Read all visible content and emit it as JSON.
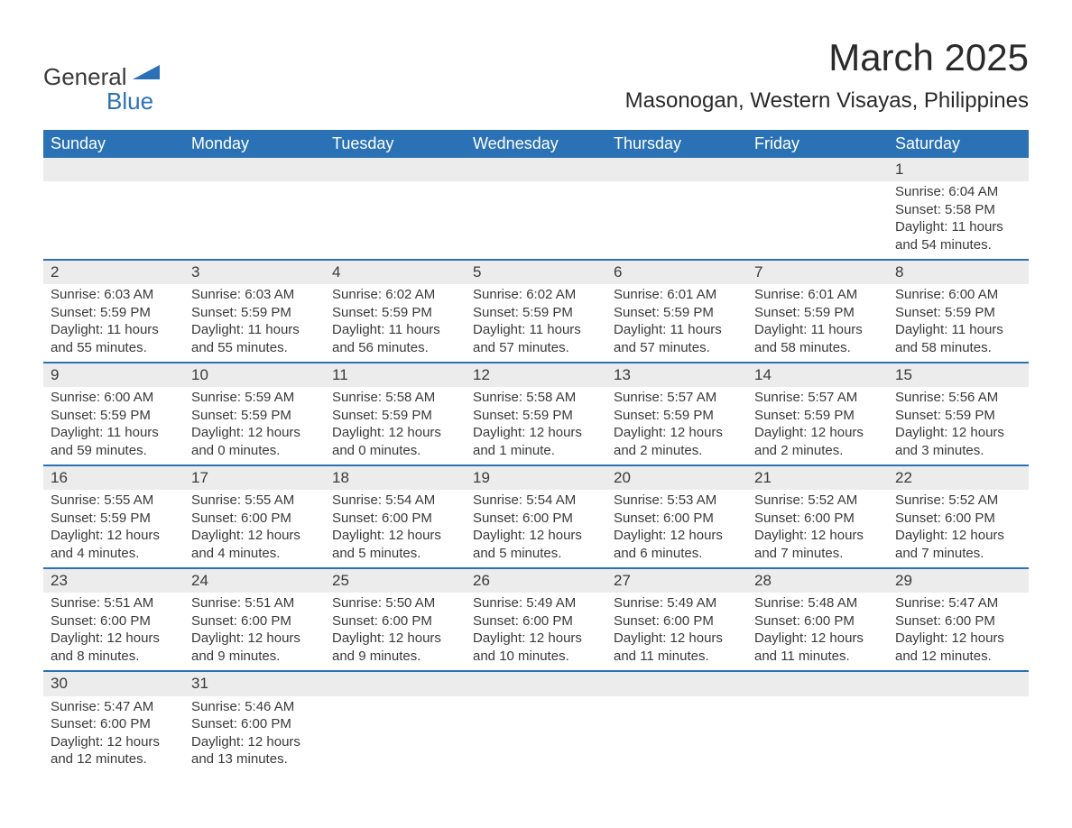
{
  "logo": {
    "general": "General",
    "blue": "Blue",
    "shape_color": "#2a72b5"
  },
  "title": "March 2025",
  "location": "Masonogan, Western Visayas, Philippines",
  "header_bg": "#2a72b5",
  "header_fg": "#ffffff",
  "daynum_bg": "#ececec",
  "row_border": "#2a72b5",
  "text_color": "#3a3a3a",
  "weekdays": [
    "Sunday",
    "Monday",
    "Tuesday",
    "Wednesday",
    "Thursday",
    "Friday",
    "Saturday"
  ],
  "weeks": [
    [
      null,
      null,
      null,
      null,
      null,
      null,
      {
        "n": "1",
        "sr": "6:04 AM",
        "ss": "5:58 PM",
        "dl": "11 hours and 54 minutes."
      }
    ],
    [
      {
        "n": "2",
        "sr": "6:03 AM",
        "ss": "5:59 PM",
        "dl": "11 hours and 55 minutes."
      },
      {
        "n": "3",
        "sr": "6:03 AM",
        "ss": "5:59 PM",
        "dl": "11 hours and 55 minutes."
      },
      {
        "n": "4",
        "sr": "6:02 AM",
        "ss": "5:59 PM",
        "dl": "11 hours and 56 minutes."
      },
      {
        "n": "5",
        "sr": "6:02 AM",
        "ss": "5:59 PM",
        "dl": "11 hours and 57 minutes."
      },
      {
        "n": "6",
        "sr": "6:01 AM",
        "ss": "5:59 PM",
        "dl": "11 hours and 57 minutes."
      },
      {
        "n": "7",
        "sr": "6:01 AM",
        "ss": "5:59 PM",
        "dl": "11 hours and 58 minutes."
      },
      {
        "n": "8",
        "sr": "6:00 AM",
        "ss": "5:59 PM",
        "dl": "11 hours and 58 minutes."
      }
    ],
    [
      {
        "n": "9",
        "sr": "6:00 AM",
        "ss": "5:59 PM",
        "dl": "11 hours and 59 minutes."
      },
      {
        "n": "10",
        "sr": "5:59 AM",
        "ss": "5:59 PM",
        "dl": "12 hours and 0 minutes."
      },
      {
        "n": "11",
        "sr": "5:58 AM",
        "ss": "5:59 PM",
        "dl": "12 hours and 0 minutes."
      },
      {
        "n": "12",
        "sr": "5:58 AM",
        "ss": "5:59 PM",
        "dl": "12 hours and 1 minute."
      },
      {
        "n": "13",
        "sr": "5:57 AM",
        "ss": "5:59 PM",
        "dl": "12 hours and 2 minutes."
      },
      {
        "n": "14",
        "sr": "5:57 AM",
        "ss": "5:59 PM",
        "dl": "12 hours and 2 minutes."
      },
      {
        "n": "15",
        "sr": "5:56 AM",
        "ss": "5:59 PM",
        "dl": "12 hours and 3 minutes."
      }
    ],
    [
      {
        "n": "16",
        "sr": "5:55 AM",
        "ss": "5:59 PM",
        "dl": "12 hours and 4 minutes."
      },
      {
        "n": "17",
        "sr": "5:55 AM",
        "ss": "6:00 PM",
        "dl": "12 hours and 4 minutes."
      },
      {
        "n": "18",
        "sr": "5:54 AM",
        "ss": "6:00 PM",
        "dl": "12 hours and 5 minutes."
      },
      {
        "n": "19",
        "sr": "5:54 AM",
        "ss": "6:00 PM",
        "dl": "12 hours and 5 minutes."
      },
      {
        "n": "20",
        "sr": "5:53 AM",
        "ss": "6:00 PM",
        "dl": "12 hours and 6 minutes."
      },
      {
        "n": "21",
        "sr": "5:52 AM",
        "ss": "6:00 PM",
        "dl": "12 hours and 7 minutes."
      },
      {
        "n": "22",
        "sr": "5:52 AM",
        "ss": "6:00 PM",
        "dl": "12 hours and 7 minutes."
      }
    ],
    [
      {
        "n": "23",
        "sr": "5:51 AM",
        "ss": "6:00 PM",
        "dl": "12 hours and 8 minutes."
      },
      {
        "n": "24",
        "sr": "5:51 AM",
        "ss": "6:00 PM",
        "dl": "12 hours and 9 minutes."
      },
      {
        "n": "25",
        "sr": "5:50 AM",
        "ss": "6:00 PM",
        "dl": "12 hours and 9 minutes."
      },
      {
        "n": "26",
        "sr": "5:49 AM",
        "ss": "6:00 PM",
        "dl": "12 hours and 10 minutes."
      },
      {
        "n": "27",
        "sr": "5:49 AM",
        "ss": "6:00 PM",
        "dl": "12 hours and 11 minutes."
      },
      {
        "n": "28",
        "sr": "5:48 AM",
        "ss": "6:00 PM",
        "dl": "12 hours and 11 minutes."
      },
      {
        "n": "29",
        "sr": "5:47 AM",
        "ss": "6:00 PM",
        "dl": "12 hours and 12 minutes."
      }
    ],
    [
      {
        "n": "30",
        "sr": "5:47 AM",
        "ss": "6:00 PM",
        "dl": "12 hours and 12 minutes."
      },
      {
        "n": "31",
        "sr": "5:46 AM",
        "ss": "6:00 PM",
        "dl": "12 hours and 13 minutes."
      },
      null,
      null,
      null,
      null,
      null
    ]
  ],
  "labels": {
    "sunrise": "Sunrise:",
    "sunset": "Sunset:",
    "daylight": "Daylight:"
  }
}
